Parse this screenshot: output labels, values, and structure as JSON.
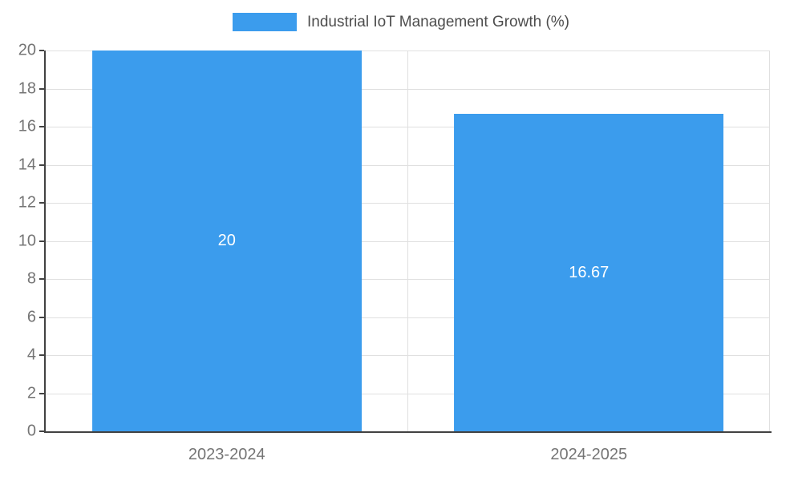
{
  "chart_data": {
    "type": "bar",
    "title": "Industrial IoT Management Growth (%)",
    "categories": [
      "2023-2024",
      "2024-2025"
    ],
    "values": [
      20,
      16.67
    ],
    "value_labels": [
      "20",
      "16.67"
    ],
    "xlabel": "",
    "ylabel": "",
    "ylim": [
      0,
      20
    ],
    "ytick_step": 2,
    "grid": true,
    "legend_position": "top-center",
    "colors": {
      "bar": "#3B9CED",
      "grid": "#E0E0E0",
      "axis": "#424242",
      "tick_label": "#757575",
      "value_label": "#FFFFFF",
      "legend_text": "#4D4D4D"
    }
  }
}
